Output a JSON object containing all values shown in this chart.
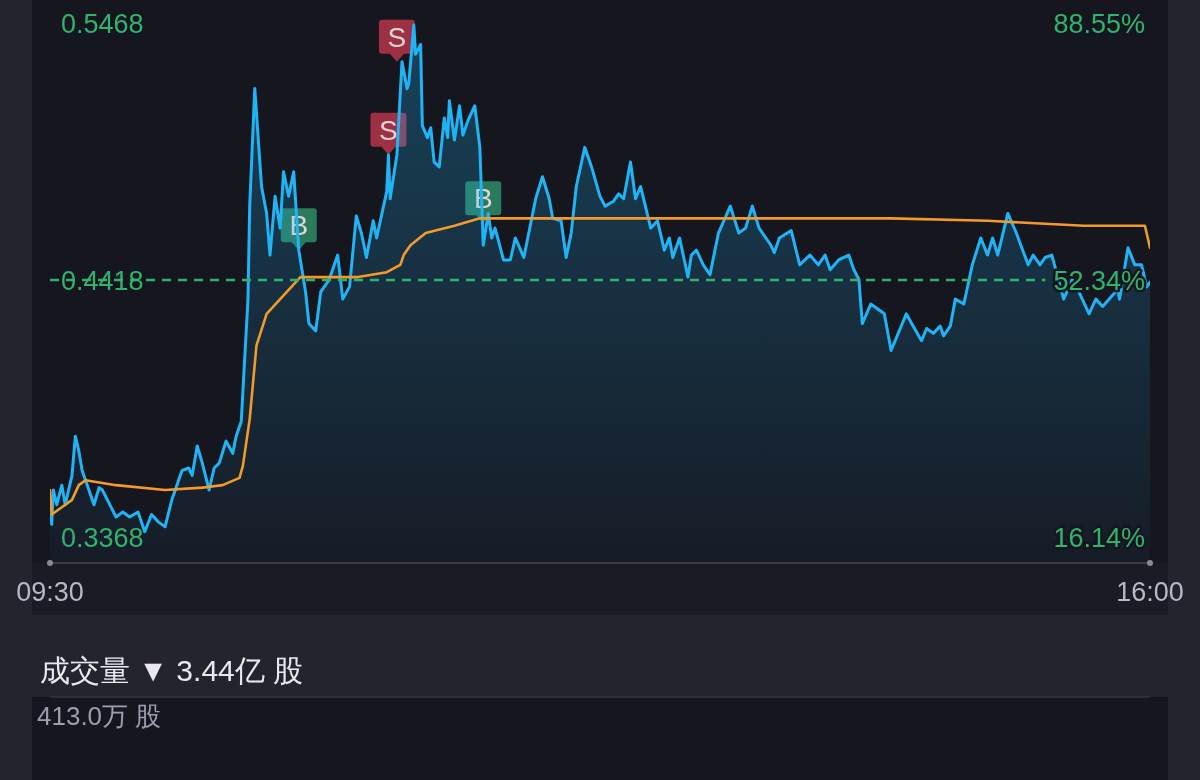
{
  "chart_data": [
    {
      "type": "line",
      "xlim": [
        9.5,
        16
      ],
      "xticks": [
        {
          "value": 9.5,
          "label": "09:30"
        },
        {
          "value": 16,
          "label": "16:00"
        }
      ],
      "ylim": [
        0.3262,
        0.5562
      ],
      "yticks": [
        0.3368,
        0.4418,
        0.5468
      ],
      "y2lim": [
        12.48,
        91.79
      ],
      "y2ticks": [
        {
          "value": 16.14,
          "label": "16.14%"
        },
        {
          "value": 52.34,
          "label": "52.34%"
        },
        {
          "value": 88.55,
          "label": "88.55%"
        }
      ],
      "grid": false,
      "ref_lines": [
        {
          "axis": "y",
          "value": 0.4418,
          "color": "#2fb36f",
          "line_style": "dashed"
        }
      ],
      "annotations": [
        {
          "text": "B",
          "x": 10.97,
          "y": 0.454
        },
        {
          "text": "S",
          "x": 11.5,
          "y": 0.493
        },
        {
          "text": "S",
          "x": 11.55,
          "y": 0.531
        },
        {
          "text": "B",
          "x": 12.06,
          "y": 0.465
        }
      ],
      "series": [
        {
          "type": "area",
          "color": "#1eb4f5",
          "x": [
            9.5,
            9.51,
            9.52,
            9.54,
            9.57,
            9.59,
            9.63,
            9.65,
            9.67,
            9.69,
            9.76,
            9.79,
            9.81,
            9.89,
            9.93,
            9.97,
            10.02,
            10.06,
            10.1,
            10.14,
            10.18,
            10.22,
            10.28,
            10.32,
            10.34,
            10.37,
            10.4,
            10.44,
            10.47,
            10.5,
            10.54,
            10.58,
            10.6,
            10.63,
            10.67,
            10.68,
            10.71,
            10.75,
            10.78,
            10.8,
            10.83,
            10.86,
            10.88,
            10.91,
            10.94,
            10.97,
            11.01,
            11.03,
            11.07,
            11.1,
            11.15,
            11.2,
            11.23,
            11.27,
            11.31,
            11.34,
            11.37,
            11.41,
            11.43,
            11.49,
            11.5,
            11.51,
            11.55,
            11.58,
            11.61,
            11.62,
            11.65,
            11.66,
            11.69,
            11.7,
            11.73,
            11.75,
            11.77,
            11.8,
            11.83,
            11.85,
            11.86,
            11.89,
            11.92,
            11.94,
            11.97,
            12.01,
            12.04,
            12.06,
            12.09,
            12.11,
            12.13,
            12.18,
            12.22,
            12.25,
            12.3,
            12.37,
            12.41,
            12.45,
            12.47,
            12.52,
            12.55,
            12.58,
            12.61,
            12.66,
            12.7,
            12.75,
            12.78,
            12.83,
            12.86,
            12.89,
            12.93,
            12.96,
            12.99,
            13.05,
            13.09,
            13.13,
            13.16,
            13.18,
            13.22,
            13.27,
            13.29,
            13.32,
            13.36,
            13.4,
            13.45,
            13.52,
            13.57,
            13.61,
            13.65,
            13.69,
            13.76,
            13.78,
            13.81,
            13.88,
            13.93,
            13.99,
            14.04,
            14.08,
            14.11,
            14.16,
            14.22,
            14.25,
            14.28,
            14.3,
            14.35,
            14.43,
            14.47,
            14.56,
            14.6,
            14.65,
            14.68,
            14.72,
            14.76,
            14.78,
            14.82,
            14.85,
            14.9,
            14.95,
            15.0,
            15.04,
            15.07,
            15.1,
            15.16,
            15.21,
            15.28,
            15.31,
            15.35,
            15.38,
            15.42,
            15.49,
            15.54,
            15.58,
            15.64,
            15.68,
            15.72,
            15.81,
            15.82,
            15.87,
            15.91,
            15.95,
            15.98,
            16.0
          ],
          "values": [
            0.346,
            0.342,
            0.356,
            0.35,
            0.358,
            0.35,
            0.362,
            0.378,
            0.372,
            0.364,
            0.35,
            0.357,
            0.356,
            0.345,
            0.347,
            0.345,
            0.347,
            0.339,
            0.346,
            0.343,
            0.341,
            0.352,
            0.364,
            0.365,
            0.362,
            0.374,
            0.367,
            0.356,
            0.365,
            0.367,
            0.376,
            0.371,
            0.378,
            0.384,
            0.434,
            0.472,
            0.52,
            0.48,
            0.469,
            0.452,
            0.476,
            0.463,
            0.486,
            0.476,
            0.486,
            0.454,
            0.437,
            0.424,
            0.421,
            0.437,
            0.442,
            0.452,
            0.434,
            0.439,
            0.468,
            0.461,
            0.451,
            0.466,
            0.459,
            0.478,
            0.493,
            0.475,
            0.493,
            0.531,
            0.52,
            0.522,
            0.546,
            0.534,
            0.538,
            0.505,
            0.5,
            0.504,
            0.49,
            0.488,
            0.508,
            0.5,
            0.515,
            0.499,
            0.513,
            0.501,
            0.507,
            0.513,
            0.496,
            0.456,
            0.469,
            0.459,
            0.463,
            0.45,
            0.45,
            0.459,
            0.451,
            0.475,
            0.484,
            0.475,
            0.467,
            0.466,
            0.451,
            0.461,
            0.48,
            0.496,
            0.488,
            0.476,
            0.472,
            0.474,
            0.477,
            0.475,
            0.49,
            0.475,
            0.48,
            0.463,
            0.466,
            0.454,
            0.459,
            0.451,
            0.459,
            0.443,
            0.452,
            0.454,
            0.448,
            0.444,
            0.461,
            0.472,
            0.461,
            0.463,
            0.472,
            0.463,
            0.456,
            0.453,
            0.459,
            0.462,
            0.448,
            0.452,
            0.448,
            0.452,
            0.446,
            0.45,
            0.452,
            0.446,
            0.442,
            0.424,
            0.432,
            0.428,
            0.413,
            0.428,
            0.423,
            0.417,
            0.422,
            0.42,
            0.423,
            0.419,
            0.423,
            0.434,
            0.432,
            0.448,
            0.459,
            0.452,
            0.459,
            0.452,
            0.469,
            0.461,
            0.448,
            0.452,
            0.448,
            0.451,
            0.452,
            0.434,
            0.442,
            0.437,
            0.428,
            0.434,
            0.431,
            0.438,
            0.434,
            0.455,
            0.448,
            0.448,
            0.439,
            0.441
          ]
        },
        {
          "type": "line",
          "color": "#f29b2c",
          "x": [
            9.5,
            9.51,
            9.57,
            9.63,
            9.67,
            9.71,
            9.89,
            10.18,
            10.4,
            10.52,
            10.62,
            10.64,
            10.68,
            10.72,
            10.78,
            10.86,
            10.94,
            10.98,
            11.03,
            11.32,
            11.49,
            11.57,
            11.59,
            11.63,
            11.72,
            11.89,
            12.04,
            12.46,
            13.32,
            14.47,
            15.04,
            15.61,
            15.97,
            16.0
          ],
          "values": [
            0.356,
            0.346,
            0.349,
            0.352,
            0.358,
            0.36,
            0.358,
            0.356,
            0.357,
            0.358,
            0.361,
            0.366,
            0.385,
            0.415,
            0.428,
            0.434,
            0.44,
            0.443,
            0.443,
            0.443,
            0.445,
            0.448,
            0.452,
            0.456,
            0.461,
            0.464,
            0.467,
            0.467,
            0.467,
            0.467,
            0.466,
            0.464,
            0.464,
            0.455
          ]
        }
      ]
    },
    {
      "type": "other",
      "title": "成交量 ▼ 3.44亿 股",
      "annotations": [
        "413.0万 股"
      ]
    }
  ]
}
